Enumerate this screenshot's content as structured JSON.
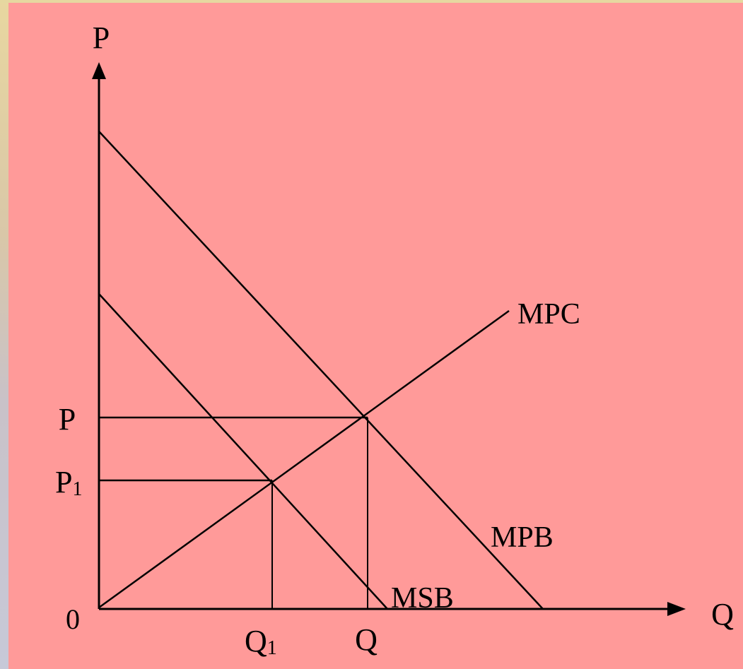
{
  "diagram": {
    "axes": {
      "y_label": "P",
      "x_label": "Q",
      "origin_label": "0"
    },
    "ticks": {
      "p": "P",
      "p1_base": "P",
      "p1_sub": "1",
      "q": "Q",
      "q1_base": "Q",
      "q1_sub": "1"
    },
    "curves": {
      "mpc": "MPC",
      "mpb": "MPB",
      "msb": "MSB"
    },
    "colors": {
      "background": "#ff9a99",
      "ink": "#000000"
    }
  }
}
